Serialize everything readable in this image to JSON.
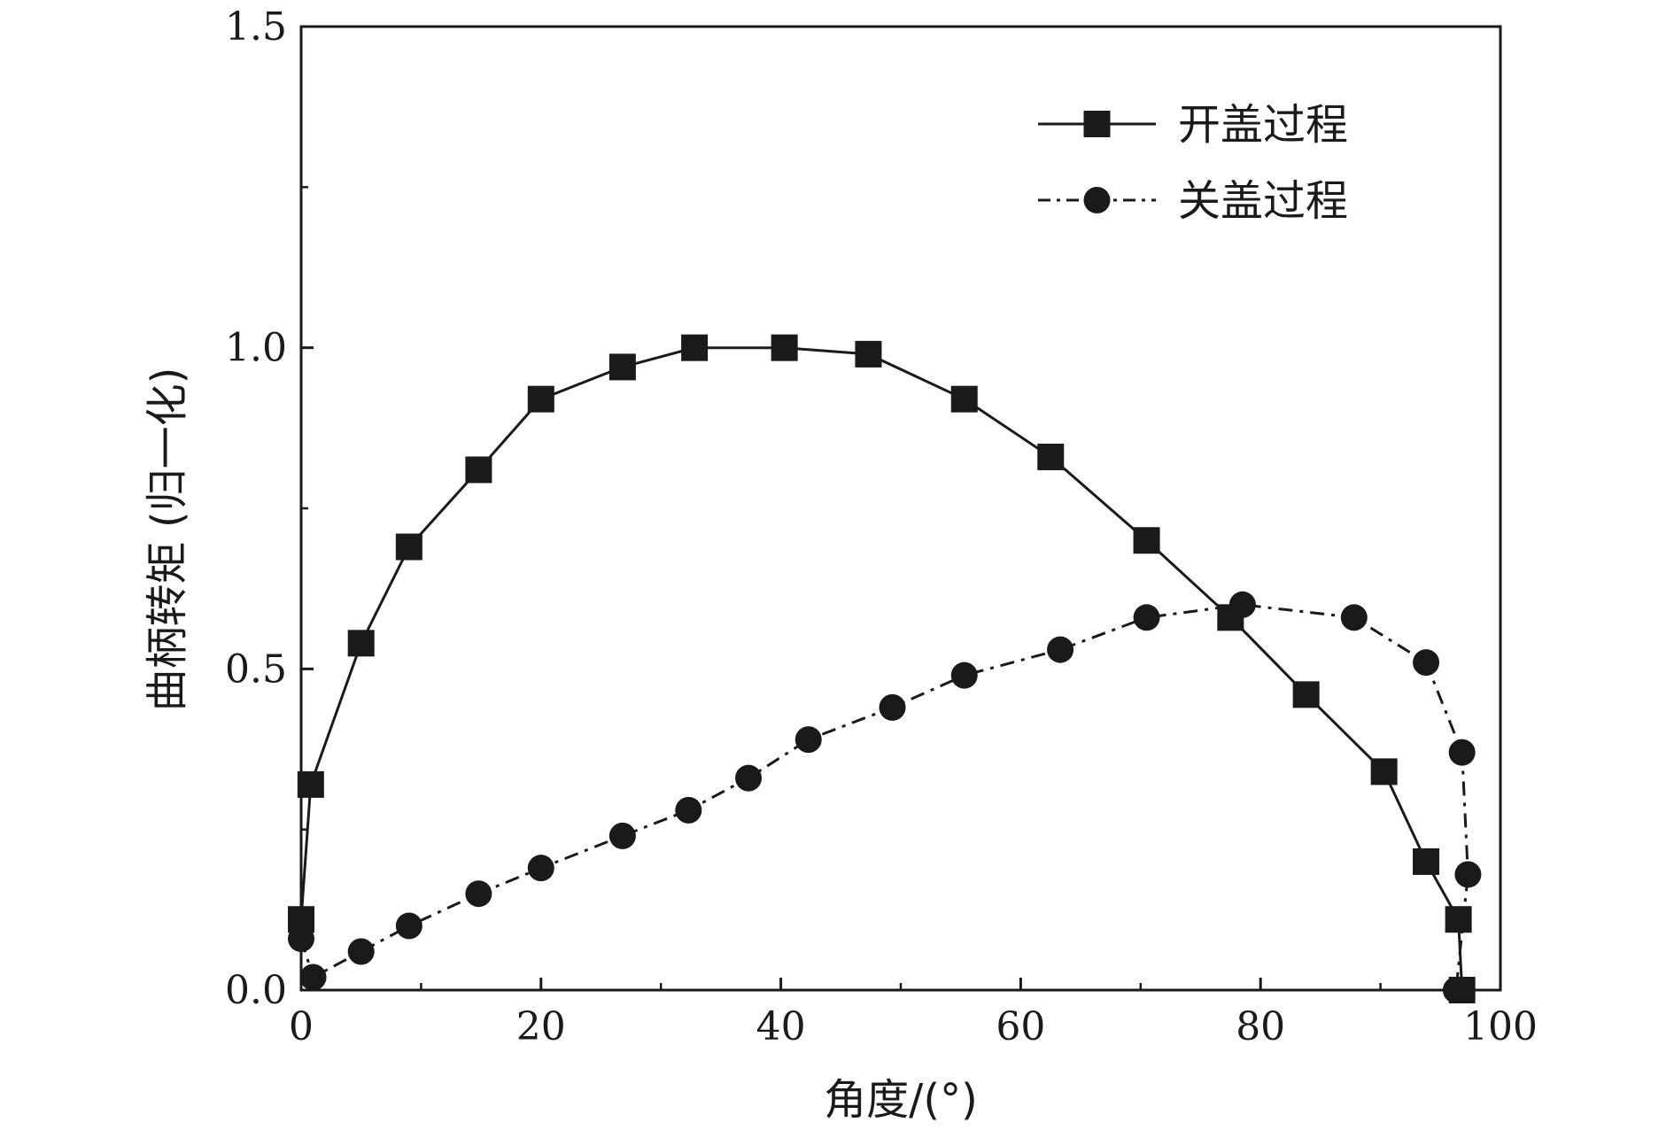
{
  "chart_data": {
    "type": "line",
    "xlabel": "角度/(°)",
    "ylabel": "曲柄转矩 (归一化)",
    "xlim": [
      0,
      100
    ],
    "ylim": [
      0,
      1.5
    ],
    "x_ticks": [
      "0",
      "20",
      "40",
      "60",
      "80",
      "100"
    ],
    "y_ticks": [
      "0.0",
      "0.5",
      "1.0",
      "1.5"
    ],
    "grid": false,
    "legend_position": "top-right",
    "series": [
      {
        "name": "开盖过程",
        "marker": "square",
        "line_style": "solid",
        "color": "#1a1a1a",
        "points": [
          [
            0.0,
            0.11
          ],
          [
            0.8,
            0.32
          ],
          [
            5.0,
            0.54
          ],
          [
            9.0,
            0.69
          ],
          [
            14.8,
            0.81
          ],
          [
            20.0,
            0.92
          ],
          [
            26.8,
            0.97
          ],
          [
            32.8,
            1.0
          ],
          [
            40.3,
            1.0
          ],
          [
            47.3,
            0.99
          ],
          [
            55.3,
            0.92
          ],
          [
            62.5,
            0.83
          ],
          [
            70.5,
            0.7
          ],
          [
            77.5,
            0.58
          ],
          [
            83.8,
            0.46
          ],
          [
            90.3,
            0.34
          ],
          [
            93.8,
            0.2
          ],
          [
            96.5,
            0.11
          ],
          [
            96.8,
            0.0
          ]
        ]
      },
      {
        "name": "关盖过程",
        "marker": "circle",
        "line_style": "dash-dot",
        "color": "#1a1a1a",
        "points": [
          [
            0.0,
            0.08
          ],
          [
            1.0,
            0.02
          ],
          [
            5.0,
            0.06
          ],
          [
            9.0,
            0.1
          ],
          [
            14.8,
            0.15
          ],
          [
            20.0,
            0.19
          ],
          [
            26.8,
            0.24
          ],
          [
            32.3,
            0.28
          ],
          [
            37.3,
            0.33
          ],
          [
            42.3,
            0.39
          ],
          [
            49.3,
            0.44
          ],
          [
            55.3,
            0.49
          ],
          [
            63.3,
            0.53
          ],
          [
            70.5,
            0.58
          ],
          [
            78.5,
            0.6
          ],
          [
            87.8,
            0.58
          ],
          [
            93.8,
            0.51
          ],
          [
            96.8,
            0.37
          ],
          [
            97.3,
            0.18
          ],
          [
            96.3,
            0.0
          ]
        ]
      }
    ]
  }
}
